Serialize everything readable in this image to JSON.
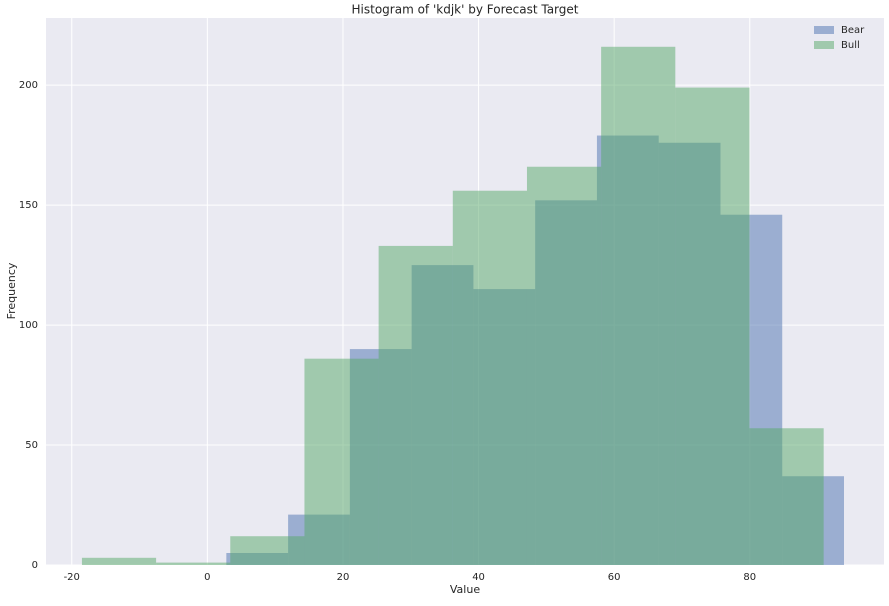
{
  "chart_data": {
    "type": "histogram",
    "title": "Histogram of 'kdjk' by Forecast Target",
    "x_label": "Value",
    "y_label": "Frequency",
    "series": [
      {
        "name": "Bear",
        "color": "#4c72b0",
        "bins": [
          2.8,
          11.91,
          21.02,
          30.13,
          39.24,
          48.35,
          57.46,
          66.57,
          75.68,
          84.79,
          93.9
        ],
        "values": [
          5,
          21,
          90,
          125,
          115,
          152,
          179,
          176,
          146,
          37
        ]
      },
      {
        "name": "Bull",
        "color": "#55a868",
        "bins": [
          -18.5,
          -7.56,
          3.38,
          14.32,
          25.26,
          36.2,
          47.14,
          58.08,
          69.02,
          79.96,
          90.9
        ],
        "values": [
          3,
          1,
          12,
          86,
          133,
          156,
          166,
          216,
          199,
          57
        ]
      }
    ],
    "alpha": 0.5,
    "xlim": [
      -23.8,
      99.8
    ],
    "xticks": [
      -20,
      0,
      20,
      40,
      60,
      80
    ],
    "ylim": [
      0,
      228
    ],
    "yticks": [
      0,
      50,
      100,
      150,
      200
    ],
    "grid": true,
    "legend": "upper right"
  }
}
